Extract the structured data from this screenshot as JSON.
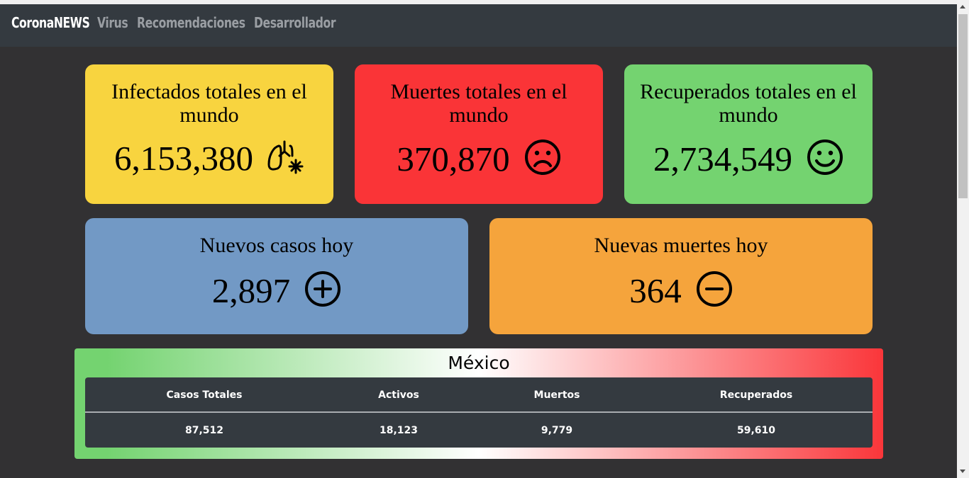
{
  "nav": {
    "brand": "CoronaNEWS",
    "links": [
      "Virus",
      "Recomendaciones",
      "Desarrollador"
    ]
  },
  "cards": {
    "infectados": {
      "title": "Infectados totales en el mundo",
      "value": "6,153,380",
      "icon": "lungs-virus-icon",
      "color": "#f8d43f"
    },
    "muertes": {
      "title": "Muertes totales en el mundo",
      "value": "370,870",
      "icon": "sad-face-icon",
      "color": "#fa3437"
    },
    "recuperados": {
      "title": "Recuperados totales en el mundo",
      "value": "2,734,549",
      "icon": "smile-face-icon",
      "color": "#74d370"
    },
    "nuevos_casos": {
      "title": "Nuevos casos hoy",
      "value": "2,897",
      "icon": "plus-circle-icon",
      "color": "#7299c5"
    },
    "nuevas_muertes": {
      "title": "Nuevas muertes hoy",
      "value": "364",
      "icon": "minus-circle-icon",
      "color": "#f5a43c"
    }
  },
  "mexico": {
    "title": "México",
    "headers": [
      "Casos Totales",
      "Activos",
      "Muertos",
      "Recuperados"
    ],
    "values": [
      "87,512",
      "18,123",
      "9,779",
      "59,610"
    ]
  }
}
